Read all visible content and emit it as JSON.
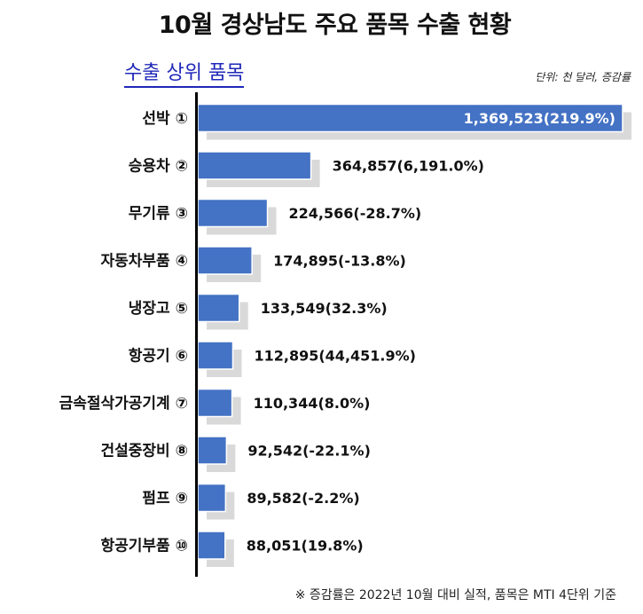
{
  "chart_data": {
    "type": "bar",
    "orientation": "horizontal",
    "title": "10월 경상남도 주요 품목 수출 현황",
    "subtitle": "수출 상위 품목",
    "unit_note": "단위: 천 달러, 증감률",
    "footnote": "※ 증감률은 2022년 10월 대비 실적, 품목은 MTI 4단위 기준",
    "categories": [
      "선박 ①",
      "승용차 ②",
      "무기류 ③",
      "자동차부품 ④",
      "냉장고 ⑤",
      "항공기 ⑥",
      "금속절삭가공기계 ⑦",
      "건설중장비 ⑧",
      "펌프 ⑨",
      "항공기부품 ⑩"
    ],
    "values": [
      1369523,
      364857,
      224566,
      174895,
      133549,
      112895,
      110344,
      92542,
      89582,
      88051
    ],
    "data_labels": [
      "1,369,523(219.9%)",
      "364,857(6,191.0%)",
      "224,566(-28.7%)",
      "174,895(-13.8%)",
      "133,549(32.3%)",
      "112,895(44,451.9%)",
      "110,344(8.0%)",
      "92,542(-22.1%)",
      "89,582(-2.2%)",
      "88,051(19.8%)"
    ],
    "growth_pct": [
      219.9,
      6191.0,
      -28.7,
      -13.8,
      32.3,
      44451.9,
      8.0,
      -22.1,
      -2.2,
      19.8
    ],
    "xlim": [
      0,
      1369523
    ],
    "bar_color": "#4472c4",
    "shadow_color": "#d9d9d9",
    "grid": false,
    "legend": "none"
  }
}
